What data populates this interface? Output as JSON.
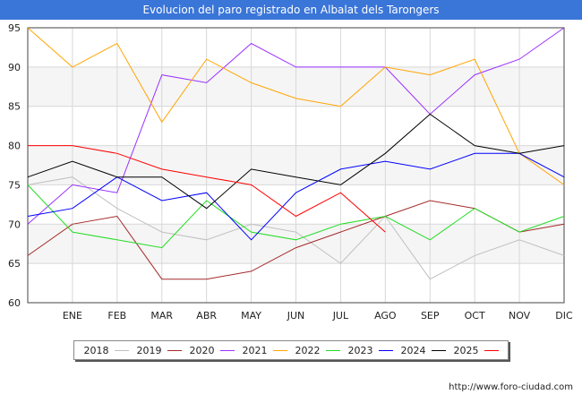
{
  "title": "Evolucion del paro registrado en Albalat dels Tarongers",
  "source": "http://www.foro-ciudad.com",
  "chart_data": {
    "type": "line",
    "categories": [
      "",
      "ENE",
      "FEB",
      "MAR",
      "ABR",
      "MAY",
      "JUN",
      "JUL",
      "AGO",
      "SEP",
      "OCT",
      "NOV",
      "DIC"
    ],
    "ylim": [
      60,
      95
    ],
    "yticks": [
      60,
      65,
      70,
      75,
      80,
      85,
      90,
      95
    ],
    "grid": true,
    "legend_position": "bottom",
    "series": [
      {
        "name": "2018",
        "color": "#c0c0c0",
        "values": [
          75,
          76,
          72,
          69,
          68,
          70,
          69,
          65,
          71,
          63,
          66,
          68,
          66
        ]
      },
      {
        "name": "2019",
        "color": "#a52a2a",
        "values": [
          66,
          70,
          71,
          63,
          63,
          64,
          67,
          69,
          71,
          73,
          72,
          69,
          70
        ]
      },
      {
        "name": "2020",
        "color": "#9b30ff",
        "values": [
          70,
          75,
          74,
          89,
          88,
          93,
          90,
          90,
          90,
          84,
          89,
          91,
          95
        ]
      },
      {
        "name": "2021",
        "color": "#ffa500",
        "values": [
          95,
          90,
          93,
          83,
          91,
          88,
          86,
          85,
          90,
          89,
          91,
          79,
          75
        ]
      },
      {
        "name": "2022",
        "color": "#22dd22",
        "values": [
          75,
          69,
          68,
          67,
          73,
          69,
          68,
          70,
          71,
          68,
          72,
          69,
          71
        ]
      },
      {
        "name": "2023",
        "color": "#0000ff",
        "values": [
          71,
          72,
          76,
          73,
          74,
          68,
          74,
          77,
          78,
          77,
          79,
          79,
          76
        ]
      },
      {
        "name": "2024",
        "color": "#000000",
        "values": [
          76,
          78,
          76,
          76,
          72,
          77,
          76,
          75,
          79,
          84,
          80,
          79,
          80
        ]
      },
      {
        "name": "2025",
        "color": "#ff0000",
        "values": [
          80,
          80,
          79,
          77,
          76,
          75,
          71,
          74,
          69,
          null,
          null,
          null,
          null
        ]
      }
    ]
  }
}
